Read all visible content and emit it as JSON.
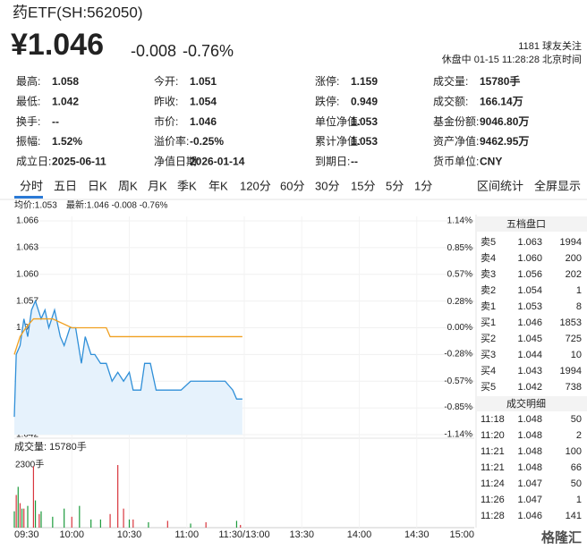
{
  "header": {
    "title": "药ETF(SH:562050)",
    "price": "¥1.046",
    "change": "-0.008",
    "change_pct": "-0.76%",
    "followers": "1181 球友关注",
    "status": "休盘中 01-15 11:28:28 北京时间",
    "color": "#1c9b3c"
  },
  "stats": [
    [
      {
        "label": "最高:",
        "value": "1.058",
        "color": "#d9363e"
      },
      {
        "label": "今开:",
        "value": "1.051",
        "color": "#1c9b3c"
      },
      {
        "label": "涨停:",
        "value": "1.159",
        "color": "#d9363e"
      },
      {
        "label": "成交量:",
        "value": "15780手",
        "color": "#222"
      }
    ],
    [
      {
        "label": "最低:",
        "value": "1.042",
        "color": "#1c9b3c"
      },
      {
        "label": "昨收:",
        "value": "1.054",
        "color": "#222"
      },
      {
        "label": "跌停:",
        "value": "0.949",
        "color": "#1c9b3c"
      },
      {
        "label": "成交额:",
        "value": "166.14万",
        "color": "#222"
      }
    ],
    [
      {
        "label": "换手:",
        "value": "--",
        "color": "#222"
      },
      {
        "label": "市价:",
        "value": "1.046",
        "color": "#222"
      },
      {
        "label": "单位净值:",
        "value": "1.053",
        "color": "#222"
      },
      {
        "label": "基金份额:",
        "value": "9046.80万",
        "color": "#222"
      }
    ],
    [
      {
        "label": "振幅:",
        "value": "1.52%",
        "color": "#222"
      },
      {
        "label": "溢价率:",
        "value": "-0.25%",
        "color": "#222"
      },
      {
        "label": "累计净值:",
        "value": "1.053",
        "color": "#222"
      },
      {
        "label": "资产净值:",
        "value": "9462.95万",
        "color": "#222"
      }
    ],
    [
      {
        "label": "成立日:",
        "value": "2025-06-11",
        "color": "#222"
      },
      {
        "label": "净值日期:",
        "value": "2026-01-14",
        "color": "#222"
      },
      {
        "label": "到期日:",
        "value": "--",
        "color": "#222"
      },
      {
        "label": "货币单位:",
        "value": "CNY",
        "color": "#222"
      }
    ]
  ],
  "tabs": [
    "分时",
    "五日",
    "日K",
    "周K",
    "月K",
    "季K",
    "年K",
    "120分",
    "60分",
    "30分",
    "15分",
    "5分",
    "1分"
  ],
  "active_tab": 0,
  "tools": [
    "区间统计",
    "全屏显示"
  ],
  "chart_data": [
    {
      "type": "line",
      "legend_avg": "均价:1.053",
      "legend_last": "最新:1.046 -0.008 -0.76%",
      "xlim": [
        0,
        240
      ],
      "xticks": [
        {
          "value": 0,
          "label": "09:30"
        },
        {
          "value": 30,
          "label": "10:00"
        },
        {
          "value": 60,
          "label": "10:30"
        },
        {
          "value": 90,
          "label": "11:00"
        },
        {
          "value": 120,
          "label": "11:30/13:00"
        },
        {
          "value": 150,
          "label": "13:30"
        },
        {
          "value": 180,
          "label": "14:00"
        },
        {
          "value": 210,
          "label": "14:30"
        },
        {
          "value": 240,
          "label": "15:00"
        }
      ],
      "ylim": [
        1.042,
        1.066
      ],
      "yticks": [
        {
          "value": 1.066,
          "label": "1.066"
        },
        {
          "value": 1.063,
          "label": "1.063"
        },
        {
          "value": 1.06,
          "label": "1.060"
        },
        {
          "value": 1.057,
          "label": "1.057"
        },
        {
          "value": 1.054,
          "label": "1.054"
        },
        {
          "value": 1.051,
          "label": "1.051"
        },
        {
          "value": 1.048,
          "label": "1.048"
        },
        {
          "value": 1.045,
          "label": "1.045"
        },
        {
          "value": 1.042,
          "label": "1.042"
        }
      ],
      "y2lim": [
        -1.14,
        1.14
      ],
      "y2ticks": [
        {
          "value": 1.14,
          "label": "1.14%"
        },
        {
          "value": 0.85,
          "label": "0.85%"
        },
        {
          "value": 0.57,
          "label": "0.57%"
        },
        {
          "value": 0.28,
          "label": "0.28%"
        },
        {
          "value": 0,
          "label": "0.00%"
        },
        {
          "value": -0.28,
          "label": "-0.28%"
        },
        {
          "value": -0.57,
          "label": "-0.57%"
        },
        {
          "value": -0.85,
          "label": "-0.85%"
        },
        {
          "value": -1.14,
          "label": "-1.14%"
        }
      ],
      "grid": true,
      "series": [
        {
          "name": "最新",
          "color": "#2f8fd8",
          "x": [
            0,
            1,
            3,
            5,
            7,
            9,
            11,
            14,
            16,
            18,
            21,
            24,
            26,
            29,
            32,
            35,
            37,
            40,
            42,
            45,
            48,
            51,
            54,
            57,
            60,
            62,
            66,
            68,
            71,
            74,
            78,
            82,
            87,
            92,
            96,
            101,
            106,
            110,
            114,
            116,
            119
          ],
          "values": [
            1.044,
            1.051,
            1.052,
            1.055,
            1.053,
            1.056,
            1.057,
            1.055,
            1.056,
            1.054,
            1.056,
            1.053,
            1.052,
            1.054,
            1.054,
            1.05,
            1.053,
            1.051,
            1.051,
            1.05,
            1.05,
            1.048,
            1.049,
            1.048,
            1.049,
            1.047,
            1.047,
            1.05,
            1.05,
            1.047,
            1.047,
            1.047,
            1.047,
            1.048,
            1.048,
            1.048,
            1.048,
            1.048,
            1.047,
            1.046,
            1.046
          ]
        },
        {
          "name": "均价",
          "color": "#f0a020",
          "x": [
            0,
            3,
            6,
            10,
            20,
            30,
            48,
            50,
            119
          ],
          "values": [
            1.051,
            1.053,
            1.054,
            1.055,
            1.055,
            1.054,
            1.054,
            1.053,
            1.053
          ]
        }
      ]
    },
    {
      "type": "bar",
      "title": "成交量: 15780手",
      "xlim": [
        0,
        240
      ],
      "ylim": [
        0,
        2300
      ],
      "yticks": [
        {
          "value": 2300,
          "label": "2300手"
        }
      ],
      "series": [
        {
          "color": "#d9363e",
          "x": [
            1,
            3,
            5,
            10,
            13,
            30,
            50,
            54,
            57,
            62,
            80,
            100,
            118
          ],
          "values": [
            1200,
            900,
            700,
            2250,
            500,
            400,
            500,
            2300,
            700,
            300,
            250,
            200,
            100
          ]
        },
        {
          "color": "#1c9b3c",
          "x": [
            0,
            2,
            4,
            7,
            11,
            14,
            20,
            26,
            34,
            40,
            45,
            60,
            70,
            92,
            116
          ],
          "values": [
            600,
            1500,
            700,
            800,
            1000,
            600,
            400,
            700,
            800,
            300,
            300,
            300,
            200,
            150,
            250
          ]
        }
      ]
    }
  ],
  "order_book": {
    "title": "五档盘口",
    "rows": [
      {
        "label": "卖5",
        "price": "1.063",
        "volume": "1994",
        "color": "#d9363e"
      },
      {
        "label": "卖4",
        "price": "1.060",
        "volume": "200",
        "color": "#d9363e"
      },
      {
        "label": "卖3",
        "price": "1.056",
        "volume": "202",
        "color": "#d9363e"
      },
      {
        "label": "卖2",
        "price": "1.054",
        "volume": "1",
        "color": "#222"
      },
      {
        "label": "卖1",
        "price": "1.053",
        "volume": "8",
        "color": "#1c9b3c"
      },
      {
        "label": "买1",
        "price": "1.046",
        "volume": "1853",
        "color": "#1c9b3c"
      },
      {
        "label": "买2",
        "price": "1.045",
        "volume": "725",
        "color": "#1c9b3c"
      },
      {
        "label": "买3",
        "price": "1.044",
        "volume": "10",
        "color": "#1c9b3c"
      },
      {
        "label": "买4",
        "price": "1.043",
        "volume": "1994",
        "color": "#1c9b3c"
      },
      {
        "label": "买5",
        "price": "1.042",
        "volume": "738",
        "color": "#1c9b3c"
      }
    ]
  },
  "trades": {
    "title": "成交明细",
    "rows": [
      {
        "time": "11:18",
        "price": "1.048",
        "volume": "50",
        "color": "#d9363e"
      },
      {
        "time": "11:20",
        "price": "1.048",
        "volume": "2",
        "color": "#1c9b3c"
      },
      {
        "time": "11:21",
        "price": "1.048",
        "volume": "100",
        "color": "#d9363e"
      },
      {
        "time": "11:21",
        "price": "1.048",
        "volume": "66",
        "color": "#d9363e"
      },
      {
        "time": "11:24",
        "price": "1.047",
        "volume": "50",
        "color": "#1c9b3c"
      },
      {
        "time": "11:26",
        "price": "1.047",
        "volume": "1",
        "color": "#1c9b3c"
      },
      {
        "time": "11:28",
        "price": "1.046",
        "volume": "141",
        "color": "#d9363e"
      }
    ]
  },
  "watermark": "格隆汇"
}
